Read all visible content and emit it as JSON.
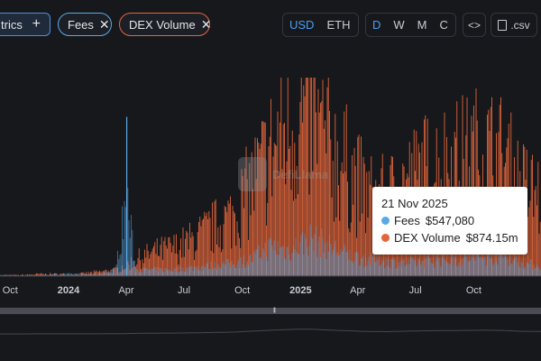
{
  "toolbar": {
    "metrics_label": "trics",
    "metrics_add": "+",
    "chips": [
      {
        "label": "Fees",
        "close": "✕",
        "color": "#5aa9e6"
      },
      {
        "label": "DEX Volume",
        "close": "✕",
        "color": "#e3653a"
      }
    ],
    "currency": [
      "USD",
      "ETH"
    ],
    "currency_active": "USD",
    "granularity": [
      "D",
      "W",
      "M",
      "C"
    ],
    "granularity_active": "D",
    "embed_label": "<>",
    "csv_label": ".csv"
  },
  "watermark": "DefiLlama",
  "colors": {
    "fees": "#5aa9e6",
    "dex_volume": "#e3653a",
    "background": "#17181c"
  },
  "tooltip": {
    "date": "21 Nov 2025",
    "rows": [
      {
        "name": "Fees",
        "value": "$547,080",
        "color": "#5aa9e6"
      },
      {
        "name": "DEX Volume",
        "value": "$874.15m",
        "color": "#e3653a"
      }
    ]
  },
  "brush": {
    "handle": "|||"
  },
  "chart_data": {
    "type": "bar",
    "granularity": "daily",
    "x_tick_labels": [
      "Oct",
      "2024",
      "Apr",
      "Jul",
      "Oct",
      "2025",
      "Apr",
      "Jul",
      "Oct"
    ],
    "x_range": [
      "2023-09-15",
      "2026-01-15"
    ],
    "series": [
      {
        "name": "Fees",
        "color": "#5aa9e6",
        "dates": [
          "2023-09-15",
          "2023-10-15",
          "2023-11-15",
          "2023-12-15",
          "2024-01-15",
          "2024-02-15",
          "2024-03-15",
          "2024-04-01",
          "2024-04-15",
          "2024-05-15",
          "2024-06-15",
          "2024-07-15",
          "2024-08-15",
          "2024-09-15",
          "2024-10-15",
          "2024-11-15",
          "2024-12-15",
          "2025-01-15",
          "2025-02-15",
          "2025-03-15",
          "2025-04-15",
          "2025-05-15",
          "2025-06-15",
          "2025-07-15",
          "2025-08-15",
          "2025-09-15",
          "2025-10-15",
          "2025-11-15",
          "2025-12-15",
          "2026-01-15"
        ],
        "values": [
          0.5,
          0.5,
          0.5,
          1,
          1,
          1,
          3,
          38,
          3,
          3,
          3,
          4,
          5,
          6,
          8,
          14,
          12,
          18,
          14,
          10,
          8,
          7,
          6,
          7,
          8,
          8,
          9,
          10,
          6,
          5
        ]
      },
      {
        "name": "DEX Volume",
        "color": "#e3653a",
        "dates": [
          "2023-09-15",
          "2023-10-15",
          "2023-11-15",
          "2023-12-15",
          "2024-01-15",
          "2024-02-15",
          "2024-03-15",
          "2024-04-01",
          "2024-04-15",
          "2024-05-15",
          "2024-06-15",
          "2024-07-15",
          "2024-08-15",
          "2024-09-15",
          "2024-10-15",
          "2024-11-15",
          "2024-12-15",
          "2025-01-15",
          "2025-02-15",
          "2025-03-15",
          "2025-04-15",
          "2025-05-15",
          "2025-06-15",
          "2025-07-15",
          "2025-08-15",
          "2025-09-15",
          "2025-10-15",
          "2025-11-15",
          "2025-12-15",
          "2026-01-15"
        ],
        "values": [
          0.5,
          0.5,
          1,
          1,
          1,
          2,
          3,
          6,
          8,
          12,
          14,
          18,
          24,
          30,
          45,
          62,
          75,
          80,
          64,
          54,
          40,
          38,
          46,
          52,
          56,
          58,
          62,
          58,
          44,
          40
        ]
      }
    ],
    "legend": "none",
    "grid": false
  }
}
